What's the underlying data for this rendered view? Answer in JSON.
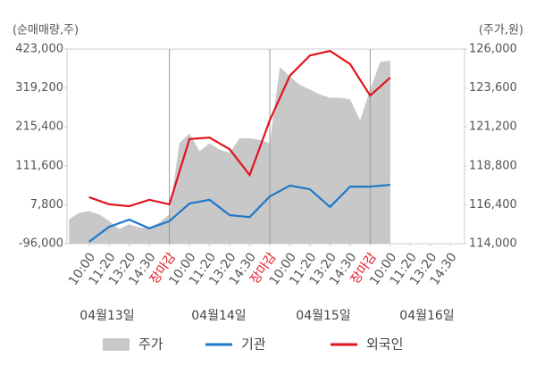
{
  "chart_data": {
    "type": "line",
    "y_label": "(순매매량,주)",
    "y2_label": "(주가,원)",
    "dates": [
      "04월13일",
      "04월14일",
      "04월15일",
      "04월16일"
    ],
    "xlim": [
      -1.1,
      18.7
    ],
    "xticks": [
      {
        "value": 0,
        "label": "10:00"
      },
      {
        "value": 1,
        "label": "11:20"
      },
      {
        "value": 2,
        "label": "13:20"
      },
      {
        "value": 3,
        "label": "14:30"
      },
      {
        "value": 4,
        "label": "장마감"
      },
      {
        "value": 5,
        "label": "10:00"
      },
      {
        "value": 6,
        "label": "11:20"
      },
      {
        "value": 7,
        "label": "13:20"
      },
      {
        "value": 8,
        "label": "14:30"
      },
      {
        "value": 9,
        "label": "장마감"
      },
      {
        "value": 10,
        "label": "10:00"
      },
      {
        "value": 11,
        "label": "11:20"
      },
      {
        "value": 12,
        "label": "13:20"
      },
      {
        "value": 13,
        "label": "14:30"
      },
      {
        "value": 14,
        "label": "장마감"
      },
      {
        "value": 15,
        "label": "10:00"
      },
      {
        "value": 16,
        "label": "11:20"
      },
      {
        "value": 17,
        "label": "13:20"
      },
      {
        "value": 18,
        "label": "14:30"
      }
    ],
    "ylim": [
      -96000,
      423000
    ],
    "yticks": [
      {
        "value": -96000,
        "label": "-96,000"
      },
      {
        "value": 7800,
        "label": "7,800"
      },
      {
        "value": 111600,
        "label": "111,600"
      },
      {
        "value": 215400,
        "label": "215,400"
      },
      {
        "value": 319200,
        "label": "319,200"
      },
      {
        "value": 423000,
        "label": "423,000"
      }
    ],
    "y2lim": [
      114000,
      126000
    ],
    "y2ticks": [
      {
        "value": 114000,
        "label": "114,000"
      },
      {
        "value": 116400,
        "label": "116,400"
      },
      {
        "value": 118800,
        "label": "118,800"
      },
      {
        "value": 121200,
        "label": "121,200"
      },
      {
        "value": 123600,
        "label": "123,600"
      },
      {
        "value": 126000,
        "label": "126,000"
      }
    ],
    "series": [
      {
        "name": "주가",
        "type": "area",
        "axis": "y2",
        "color": "#c8c8c8",
        "x": [
          -1,
          -0.5,
          0,
          0.5,
          1,
          1.5,
          2,
          2.5,
          3,
          3.5,
          4,
          4.5,
          5,
          5.5,
          6,
          6.5,
          7,
          7.5,
          8,
          8.5,
          9,
          9.5,
          10,
          10.5,
          11,
          11.5,
          12,
          12.5,
          13,
          13.5,
          14,
          14.5,
          15
        ],
        "values": [
          115500,
          115900,
          116000,
          115800,
          115400,
          114900,
          115200,
          115000,
          115000,
          115300,
          115800,
          120200,
          120800,
          119700,
          120200,
          119800,
          119600,
          120500,
          120500,
          120400,
          120200,
          124900,
          124300,
          123800,
          123500,
          123200,
          123000,
          123000,
          122900,
          121600,
          123500,
          125200,
          125300
        ]
      },
      {
        "name": "기관",
        "type": "line",
        "color": "#1e78c8",
        "x": [
          0,
          1,
          2,
          3,
          4,
          5,
          6,
          7,
          8,
          9,
          10,
          11,
          12,
          13,
          14,
          15
        ],
        "values": [
          -91000,
          -51000,
          -32000,
          -55000,
          -36000,
          11000,
          21000,
          -20000,
          -25000,
          30000,
          59000,
          49000,
          2000,
          56000,
          56000,
          61000
        ]
      },
      {
        "name": "외국인",
        "type": "line",
        "color": "#e0141e",
        "x": [
          0,
          1,
          2,
          3,
          4,
          5,
          6,
          7,
          8,
          9,
          10,
          11,
          12,
          13,
          14,
          15
        ],
        "values": [
          28000,
          9000,
          4000,
          21000,
          9000,
          183000,
          187000,
          156000,
          87000,
          233000,
          352000,
          406000,
          418000,
          383000,
          299000,
          347000
        ]
      }
    ]
  }
}
